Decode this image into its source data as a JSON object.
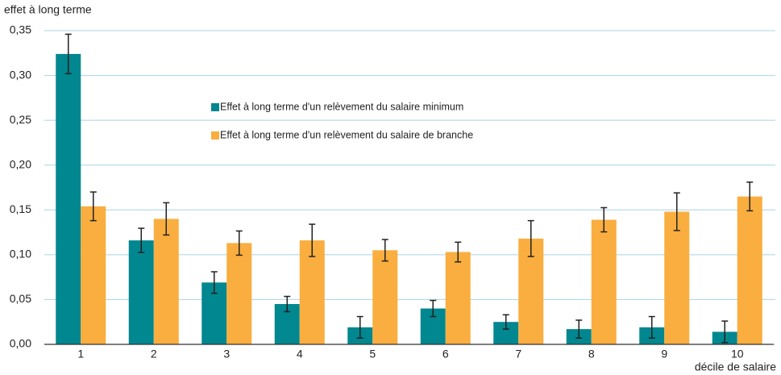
{
  "chart_data": {
    "type": "bar",
    "y_label": "effet à long terme",
    "x_label": "décile de salaire",
    "categories": [
      "1",
      "2",
      "3",
      "4",
      "5",
      "6",
      "7",
      "8",
      "9",
      "10"
    ],
    "series": [
      {
        "name": "Effet à long terme d'un relèvement du salaire minimum",
        "color": "#00878f",
        "values": [
          0.324,
          0.116,
          0.069,
          0.045,
          0.019,
          0.04,
          0.025,
          0.017,
          0.019,
          0.014
        ],
        "errors": [
          0.022,
          0.0135,
          0.012,
          0.0085,
          0.012,
          0.009,
          0.008,
          0.01,
          0.012,
          0.012
        ]
      },
      {
        "name": "Effet à long terme d'un relèvement du salaire de branche",
        "color": "#f9ae3f",
        "values": [
          0.154,
          0.14,
          0.113,
          0.116,
          0.105,
          0.103,
          0.118,
          0.139,
          0.148,
          0.165
        ],
        "errors": [
          0.016,
          0.018,
          0.0135,
          0.018,
          0.012,
          0.011,
          0.02,
          0.0135,
          0.021,
          0.016
        ]
      }
    ],
    "ylim": [
      0,
      0.35
    ],
    "yticks": [
      {
        "value": 0,
        "label": "0,00"
      },
      {
        "value": 0.05,
        "label": "0,05"
      },
      {
        "value": 0.1,
        "label": "0,10"
      },
      {
        "value": 0.15,
        "label": "0,15"
      },
      {
        "value": 0.2,
        "label": "0,20"
      },
      {
        "value": 0.25,
        "label": "0,25"
      },
      {
        "value": 0.3,
        "label": "0,30"
      },
      {
        "value": 0.35,
        "label": "0,35"
      }
    ],
    "grid": true,
    "error_bars": true
  }
}
